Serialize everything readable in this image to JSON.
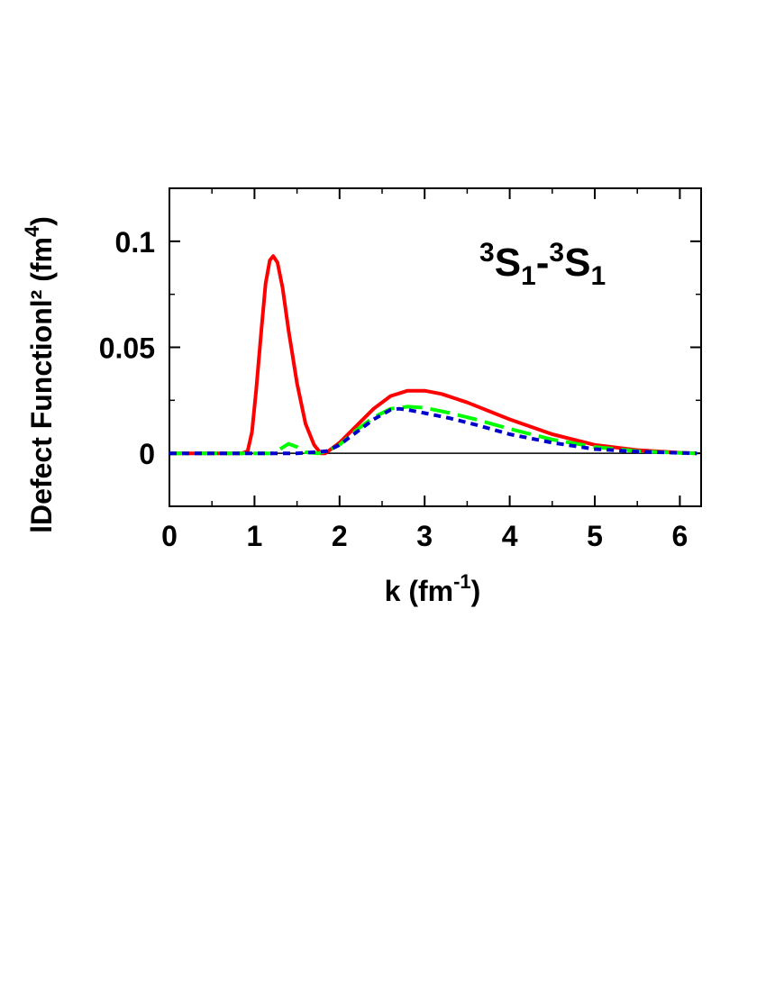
{
  "chart_data": {
    "type": "line",
    "xlabel": {
      "main": "k (fm",
      "sup": "-1",
      "tail": ")"
    },
    "ylabel": {
      "main": "lDefect Functionl² (fm",
      "sup": "4",
      "tail": ")"
    },
    "annotation": {
      "pre": "3",
      "a": "S",
      "sub1": "1",
      "dash": "-",
      "pre2": "3",
      "b": "S",
      "sub2": "1"
    },
    "xlim": [
      0,
      6.25
    ],
    "ylim": [
      -0.025,
      0.125
    ],
    "xticks": [
      0,
      1,
      2,
      3,
      4,
      5,
      6
    ],
    "xtick_labels": [
      "0",
      "1",
      "2",
      "3",
      "4",
      "5",
      "6"
    ],
    "yticks": [
      0,
      0.05,
      0.1
    ],
    "ytick_labels": [
      "0",
      "0.05",
      "0.1"
    ],
    "grid": false,
    "zero_line": true,
    "series": [
      {
        "color": "#ff0000",
        "style": "solid",
        "points": [
          [
            0,
            0
          ],
          [
            0.85,
            0
          ],
          [
            0.92,
            0.001
          ],
          [
            0.97,
            0.01
          ],
          [
            1.02,
            0.03
          ],
          [
            1.08,
            0.058
          ],
          [
            1.13,
            0.08
          ],
          [
            1.18,
            0.091
          ],
          [
            1.22,
            0.093
          ],
          [
            1.27,
            0.09
          ],
          [
            1.33,
            0.078
          ],
          [
            1.4,
            0.058
          ],
          [
            1.5,
            0.033
          ],
          [
            1.6,
            0.014
          ],
          [
            1.7,
            0.004
          ],
          [
            1.78,
            0.0
          ],
          [
            1.83,
            0.0
          ],
          [
            1.9,
            0.002
          ],
          [
            2.0,
            0.005
          ],
          [
            2.2,
            0.013
          ],
          [
            2.4,
            0.021
          ],
          [
            2.6,
            0.027
          ],
          [
            2.8,
            0.0295
          ],
          [
            3.0,
            0.0295
          ],
          [
            3.2,
            0.028
          ],
          [
            3.5,
            0.024
          ],
          [
            4.0,
            0.016
          ],
          [
            4.5,
            0.009
          ],
          [
            5.0,
            0.004
          ],
          [
            5.5,
            0.0015
          ],
          [
            6.0,
            0.0003
          ],
          [
            6.2,
            0.0
          ]
        ]
      },
      {
        "color": "#00ff00",
        "style": "dashed",
        "points": [
          [
            0,
            0
          ],
          [
            1.2,
            0
          ],
          [
            1.3,
            0.002
          ],
          [
            1.4,
            0.0045
          ],
          [
            1.5,
            0.003
          ],
          [
            1.6,
            0.0005
          ],
          [
            1.75,
            0.0
          ],
          [
            1.85,
            0.001
          ],
          [
            2.0,
            0.004
          ],
          [
            2.2,
            0.011
          ],
          [
            2.4,
            0.017
          ],
          [
            2.6,
            0.021
          ],
          [
            2.8,
            0.022
          ],
          [
            3.0,
            0.0215
          ],
          [
            3.3,
            0.019
          ],
          [
            3.6,
            0.016
          ],
          [
            4.0,
            0.0115
          ],
          [
            4.5,
            0.0065
          ],
          [
            5.0,
            0.003
          ],
          [
            5.5,
            0.001
          ],
          [
            6.0,
            0.0002
          ],
          [
            6.2,
            0.0
          ]
        ]
      },
      {
        "color": "#0000cc",
        "style": "dotted",
        "points": [
          [
            0,
            0
          ],
          [
            1.5,
            0
          ],
          [
            1.7,
            0.0005
          ],
          [
            1.85,
            0.001
          ],
          [
            2.0,
            0.004
          ],
          [
            2.2,
            0.01
          ],
          [
            2.4,
            0.016
          ],
          [
            2.6,
            0.0205
          ],
          [
            2.7,
            0.021
          ],
          [
            2.8,
            0.0205
          ],
          [
            3.0,
            0.019
          ],
          [
            3.3,
            0.0165
          ],
          [
            3.6,
            0.0135
          ],
          [
            4.0,
            0.009
          ],
          [
            4.5,
            0.005
          ],
          [
            5.0,
            0.002
          ],
          [
            5.5,
            0.0008
          ],
          [
            6.0,
            0.0002
          ],
          [
            6.2,
            0.0
          ]
        ]
      }
    ]
  }
}
